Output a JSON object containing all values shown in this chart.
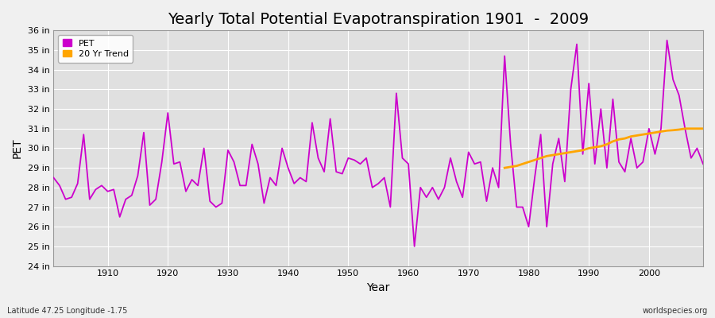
{
  "title": "Yearly Total Potential Evapotranspiration 1901  -  2009",
  "xlabel": "Year",
  "ylabel": "PET",
  "subtitle_left": "Latitude 47.25 Longitude -1.75",
  "subtitle_right": "worldspecies.org",
  "pet_color": "#CC00CC",
  "trend_color": "#FFA500",
  "bg_color": "#F0F0F0",
  "plot_bg_color": "#E0E0E0",
  "grid_color": "#FFFFFF",
  "ylim": [
    24,
    36
  ],
  "xlim": [
    1901,
    2009
  ],
  "ytick_labels": [
    "24 in",
    "25 in",
    "26 in",
    "27 in",
    "28 in",
    "29 in",
    "30 in",
    "31 in",
    "32 in",
    "33 in",
    "34 in",
    "35 in",
    "36 in"
  ],
  "ytick_values": [
    24,
    25,
    26,
    27,
    28,
    29,
    30,
    31,
    32,
    33,
    34,
    35,
    36
  ],
  "xtick_values": [
    1910,
    1920,
    1930,
    1940,
    1950,
    1960,
    1970,
    1980,
    1990,
    2000
  ],
  "years": [
    1901,
    1902,
    1903,
    1904,
    1905,
    1906,
    1907,
    1908,
    1909,
    1910,
    1911,
    1912,
    1913,
    1914,
    1915,
    1916,
    1917,
    1918,
    1919,
    1920,
    1921,
    1922,
    1923,
    1924,
    1925,
    1926,
    1927,
    1928,
    1929,
    1930,
    1931,
    1932,
    1933,
    1934,
    1935,
    1936,
    1937,
    1938,
    1939,
    1940,
    1941,
    1942,
    1943,
    1944,
    1945,
    1946,
    1947,
    1948,
    1949,
    1950,
    1951,
    1952,
    1953,
    1954,
    1955,
    1956,
    1957,
    1958,
    1959,
    1960,
    1961,
    1962,
    1963,
    1964,
    1965,
    1966,
    1967,
    1968,
    1969,
    1970,
    1971,
    1972,
    1973,
    1974,
    1975,
    1976,
    1977,
    1978,
    1979,
    1980,
    1981,
    1982,
    1983,
    1984,
    1985,
    1986,
    1987,
    1988,
    1989,
    1990,
    1991,
    1992,
    1993,
    1994,
    1995,
    1996,
    1997,
    1998,
    1999,
    2000,
    2001,
    2002,
    2003,
    2004,
    2005,
    2006,
    2007,
    2008,
    2009
  ],
  "pet_values": [
    28.5,
    28.1,
    27.4,
    27.5,
    28.2,
    30.7,
    27.4,
    27.9,
    28.1,
    27.8,
    27.9,
    26.5,
    27.4,
    27.6,
    28.6,
    30.8,
    27.1,
    27.4,
    29.3,
    31.8,
    29.2,
    29.3,
    27.8,
    28.4,
    28.1,
    30.0,
    27.3,
    27.0,
    27.2,
    29.9,
    29.3,
    28.1,
    28.1,
    30.2,
    29.2,
    27.2,
    28.5,
    28.1,
    30.0,
    29.0,
    28.2,
    28.5,
    28.3,
    31.3,
    29.5,
    28.8,
    31.5,
    28.8,
    28.7,
    29.5,
    29.4,
    29.2,
    29.5,
    28.0,
    28.2,
    28.5,
    27.0,
    32.8,
    29.5,
    29.2,
    25.0,
    28.0,
    27.5,
    28.0,
    27.4,
    28.0,
    29.5,
    28.3,
    27.5,
    29.8,
    29.2,
    29.3,
    27.3,
    29.0,
    28.0,
    34.7,
    30.2,
    27.0,
    27.0,
    26.0,
    28.5,
    30.7,
    26.0,
    29.2,
    30.5,
    28.3,
    33.0,
    35.3,
    29.7,
    33.3,
    29.2,
    32.0,
    29.0,
    32.5,
    29.3,
    28.8,
    30.5,
    29.0,
    29.3,
    31.0,
    29.7,
    31.0,
    35.5,
    33.5,
    32.7,
    31.0,
    29.5,
    30.0,
    29.2
  ],
  "trend_years": [
    1976,
    1977,
    1978,
    1979,
    1980,
    1981,
    1982,
    1983,
    1984,
    1985,
    1986,
    1987,
    1988,
    1989,
    1990,
    1991,
    1992,
    1993,
    1994,
    1995,
    1996,
    1997,
    1998,
    1999,
    2000,
    2001,
    2002,
    2003,
    2004,
    2005,
    2006,
    2007,
    2008,
    2009
  ],
  "trend_values": [
    29.0,
    29.05,
    29.1,
    29.2,
    29.3,
    29.4,
    29.5,
    29.6,
    29.65,
    29.7,
    29.75,
    29.8,
    29.85,
    29.9,
    30.0,
    30.05,
    30.1,
    30.2,
    30.35,
    30.45,
    30.5,
    30.6,
    30.65,
    30.7,
    30.75,
    30.8,
    30.85,
    30.9,
    30.92,
    30.95,
    31.0,
    31.0,
    31.0,
    31.0
  ],
  "title_fontsize": 14,
  "axis_label_fontsize": 10,
  "tick_fontsize": 8,
  "legend_fontsize": 8,
  "annotation_fontsize": 7,
  "pet_linewidth": 1.3,
  "trend_linewidth": 2.0
}
